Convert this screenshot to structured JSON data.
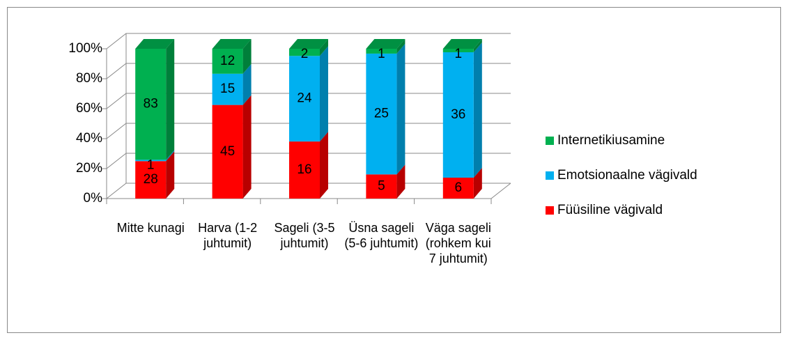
{
  "chart_data": {
    "type": "bar",
    "stacked": "percent",
    "three_d": true,
    "categories": [
      "Mitte kunagi",
      "Harva (1-2 juhtumit)",
      "Sageli (3-5 juhtumit)",
      "Üsna sageli (5-6 juhtumit)",
      "Väga sageli (rohkem kui 7 juhtumit)"
    ],
    "series": [
      {
        "name": "Füüsiline vägivald",
        "color": "#ff0000",
        "values": [
          28,
          45,
          16,
          5,
          6
        ]
      },
      {
        "name": "Emotsionaalne vägivald",
        "color": "#00b0f0",
        "values": [
          1,
          15,
          24,
          25,
          36
        ]
      },
      {
        "name": "Internetikiusamine",
        "color": "#00b050",
        "values": [
          83,
          12,
          2,
          1,
          1
        ]
      }
    ],
    "ylim": [
      0,
      100
    ],
    "yticks": [
      {
        "value": 0,
        "label": "0%"
      },
      {
        "value": 20,
        "label": "20%"
      },
      {
        "value": 40,
        "label": "40%"
      },
      {
        "value": 60,
        "label": "60%"
      },
      {
        "value": 80,
        "label": "80%"
      },
      {
        "value": 100,
        "label": "100%"
      }
    ],
    "grid": true,
    "legend": "right"
  }
}
